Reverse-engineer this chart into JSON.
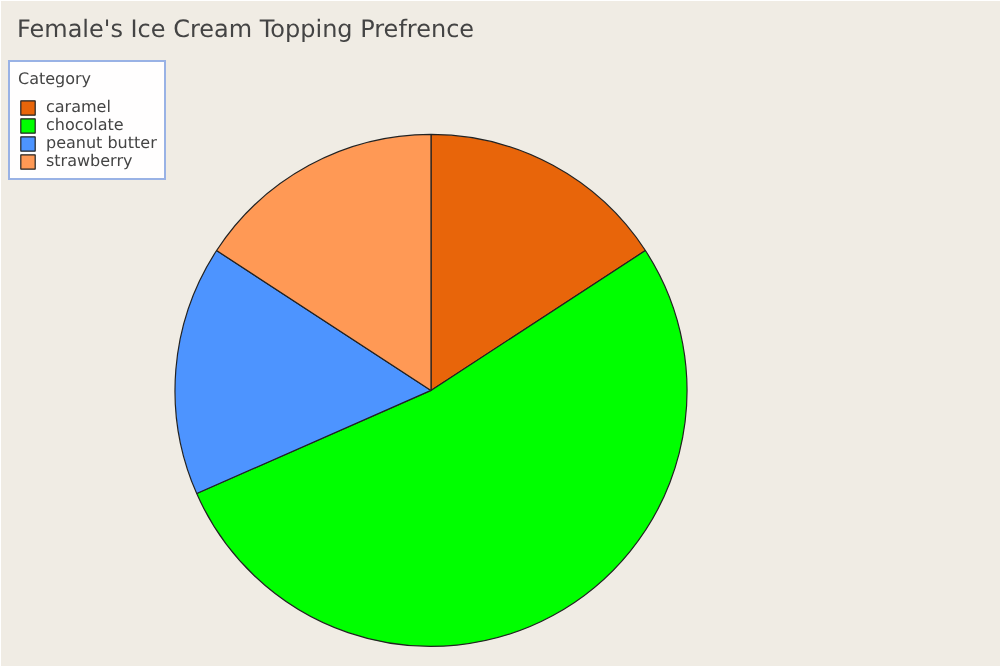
{
  "chart_data": {
    "type": "pie",
    "title": "Female's Ice Cream Topping Prefrence",
    "legend_title": "Category",
    "legend": "top left",
    "categories": [
      "caramel",
      "chocolate",
      "peanut butter",
      "strawberry"
    ],
    "values": [
      15.8,
      52.6,
      15.8,
      15.8
    ],
    "colors": [
      "#e8650a",
      "#00ff00",
      "#4d94ff",
      "#ff9955"
    ]
  }
}
